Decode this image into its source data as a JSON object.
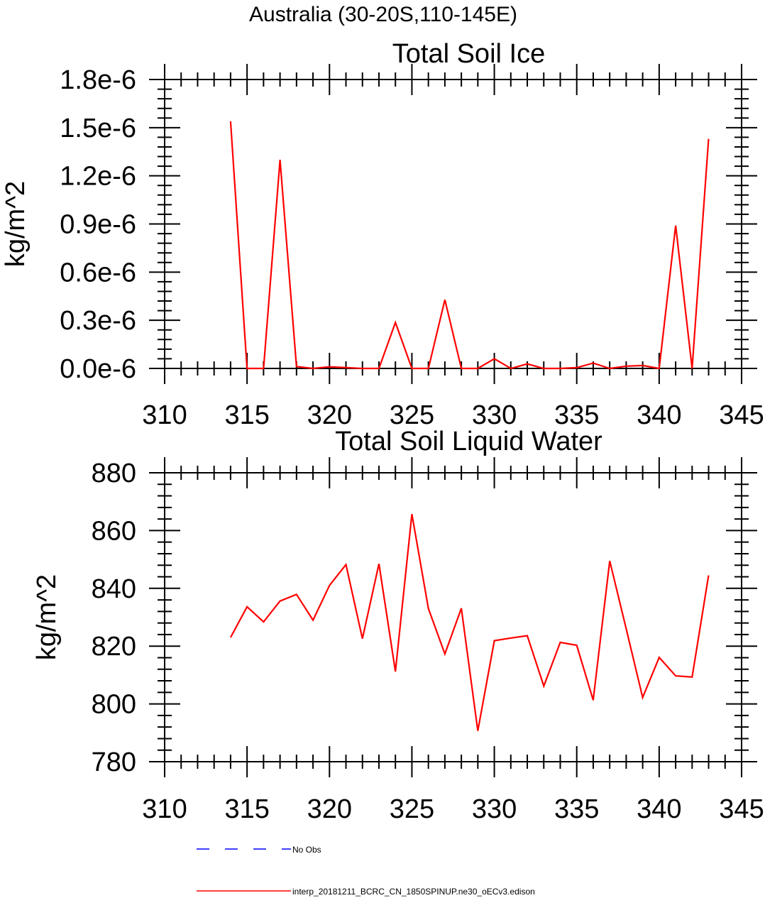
{
  "figure": {
    "title": "Australia (30-20S,110-145E)",
    "legend": [
      {
        "label": "No Obs",
        "color": "#0000ff",
        "dash": true
      },
      {
        "label": "interp_20181211_BCRC_CN_1850SPINUP.ne30_oECv3.edison",
        "color": "#ff0000",
        "dash": false
      }
    ]
  },
  "chart_data": [
    {
      "type": "line",
      "title": "Total Soil Ice",
      "xlabel": "",
      "ylabel": "kg/m^2",
      "xlim": [
        310,
        345
      ],
      "ylim": [
        0,
        1.8e-06
      ],
      "x_ticks": [
        310,
        315,
        320,
        325,
        330,
        335,
        340,
        345
      ],
      "x_tick_labels": [
        "310",
        "315",
        "320",
        "325",
        "330",
        "335",
        "340",
        "345"
      ],
      "y_ticks": [
        0,
        3e-07,
        6e-07,
        9e-07,
        1.2e-06,
        1.5e-06,
        1.8e-06
      ],
      "y_tick_labels": [
        "0.0e-6",
        "0.3e-6",
        "0.6e-6",
        "0.9e-6",
        "1.2e-6",
        "1.5e-6",
        "1.8e-6"
      ],
      "grid": false,
      "series": [
        {
          "color": "#ff0000",
          "x": [
            314,
            315,
            316,
            317,
            318,
            319,
            320,
            321,
            322,
            323,
            324,
            325,
            326,
            327,
            328,
            329,
            330,
            331,
            332,
            333,
            334,
            335,
            336,
            337,
            338,
            339,
            340,
            341,
            342,
            343
          ],
          "values": [
            1.54e-06,
            0,
            0,
            1.3e-06,
            1.2e-08,
            0,
            1e-08,
            5e-09,
            0,
            0,
            2.86e-07,
            0,
            0,
            4.28e-07,
            0,
            0,
            6e-08,
            0,
            2.8e-08,
            0,
            0,
            5e-09,
            3.3e-08,
            0,
            1.4e-08,
            1.8e-08,
            0,
            8.9e-07,
            0,
            1.43e-06
          ]
        }
      ]
    },
    {
      "type": "line",
      "title": "Total Soil Liquid Water",
      "xlabel": "",
      "ylabel": "kg/m^2",
      "xlim": [
        310,
        345
      ],
      "ylim": [
        780,
        880
      ],
      "x_ticks": [
        310,
        315,
        320,
        325,
        330,
        335,
        340,
        345
      ],
      "x_tick_labels": [
        "310",
        "315",
        "320",
        "325",
        "330",
        "335",
        "340",
        "345"
      ],
      "y_ticks": [
        780,
        800,
        820,
        840,
        860,
        880
      ],
      "y_tick_labels": [
        "780",
        "800",
        "820",
        "840",
        "860",
        "880"
      ],
      "grid": false,
      "series": [
        {
          "color": "#ff0000",
          "x": [
            314,
            315,
            316,
            317,
            318,
            319,
            320,
            321,
            322,
            323,
            324,
            325,
            326,
            327,
            328,
            329,
            330,
            331,
            332,
            333,
            334,
            335,
            336,
            337,
            338,
            339,
            340,
            341,
            342,
            343
          ],
          "values": [
            823.0,
            833.6,
            828.4,
            835.6,
            837.9,
            829.0,
            841.0,
            848.2,
            822.6,
            848.5,
            811.2,
            865.7,
            833.0,
            817.3,
            833.1,
            790.7,
            821.9,
            822.8,
            823.6,
            806.2,
            821.3,
            820.3,
            801.3,
            849.5,
            826.0,
            802.2,
            816.1,
            809.7,
            809.3,
            844.5
          ]
        }
      ]
    }
  ]
}
